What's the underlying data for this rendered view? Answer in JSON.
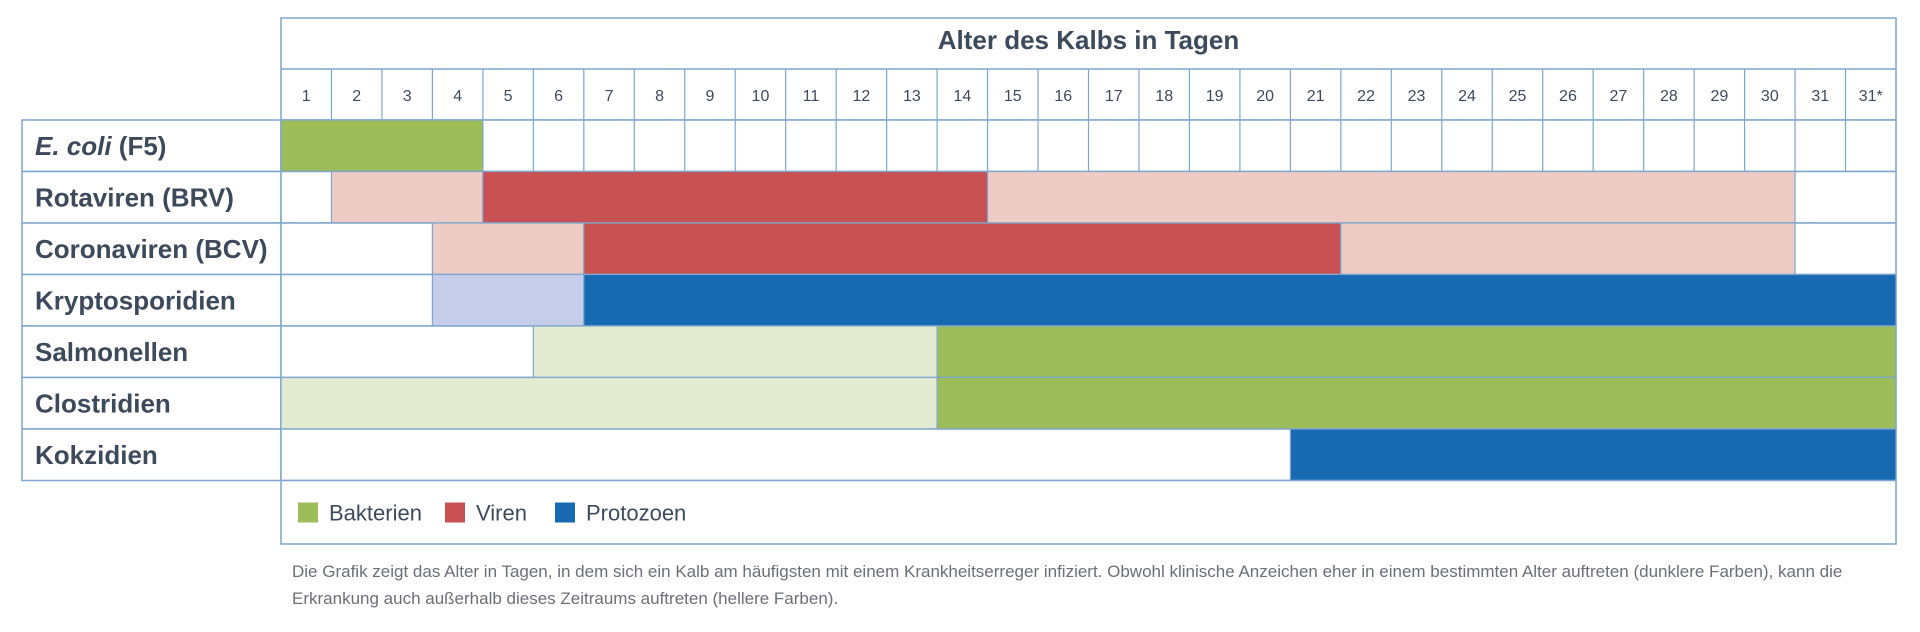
{
  "chart_data": {
    "type": "gantt",
    "title": "Alter des Kalbs in Tagen",
    "days": [
      "1",
      "2",
      "3",
      "4",
      "5",
      "6",
      "7",
      "8",
      "9",
      "10",
      "11",
      "12",
      "13",
      "14",
      "15",
      "16",
      "17",
      "18",
      "19",
      "20",
      "21",
      "22",
      "23",
      "24",
      "25",
      "26",
      "27",
      "28",
      "29",
      "30",
      "31",
      "31*"
    ],
    "rows": [
      {
        "label_italic": "E. coli",
        "label_rest": " (F5)",
        "segments": [
          {
            "start": 1,
            "end": 4,
            "category": "bacteria",
            "intensity": "dark"
          }
        ]
      },
      {
        "label": "Rotaviren (BRV)",
        "segments": [
          {
            "start": 2,
            "end": 4,
            "category": "viruses",
            "intensity": "light"
          },
          {
            "start": 5,
            "end": 14,
            "category": "viruses",
            "intensity": "dark"
          },
          {
            "start": 15,
            "end": 30,
            "category": "viruses",
            "intensity": "light"
          }
        ]
      },
      {
        "label": "Coronaviren (BCV)",
        "segments": [
          {
            "start": 4,
            "end": 6,
            "category": "viruses",
            "intensity": "light"
          },
          {
            "start": 7,
            "end": 21,
            "category": "viruses",
            "intensity": "dark"
          },
          {
            "start": 22,
            "end": 30,
            "category": "viruses",
            "intensity": "light"
          }
        ]
      },
      {
        "label": "Kryptosporidien",
        "segments": [
          {
            "start": 4,
            "end": 6,
            "category": "protozoa",
            "intensity": "light"
          },
          {
            "start": 7,
            "end": 32,
            "category": "protozoa",
            "intensity": "dark"
          }
        ]
      },
      {
        "label": "Salmonellen",
        "segments": [
          {
            "start": 6,
            "end": 13,
            "category": "bacteria",
            "intensity": "light"
          },
          {
            "start": 14,
            "end": 32,
            "category": "bacteria",
            "intensity": "dark"
          }
        ]
      },
      {
        "label": "Clostridien",
        "segments": [
          {
            "start": 1,
            "end": 13,
            "category": "bacteria",
            "intensity": "light"
          },
          {
            "start": 14,
            "end": 32,
            "category": "bacteria",
            "intensity": "dark"
          }
        ]
      },
      {
        "label": "Kokzidien",
        "segments": [
          {
            "start": 21,
            "end": 32,
            "category": "protozoa",
            "intensity": "dark"
          }
        ]
      }
    ],
    "legend": [
      {
        "key": "bacteria",
        "label": "Bakterien"
      },
      {
        "key": "viruses",
        "label": "Viren"
      },
      {
        "key": "protozoa",
        "label": "Protozoen"
      }
    ],
    "colors": {
      "bacteria": {
        "dark": "#9cbd5a",
        "light": "#e4ebd3"
      },
      "viruses": {
        "dark": "#c75153",
        "light": "#eecbc5"
      },
      "protozoa": {
        "dark": "#1769b2",
        "light": "#c5cdea"
      },
      "grid": "#7ea6cc",
      "text": "#3d4a5c"
    },
    "caption": "Die Grafik zeigt das Alter in Tagen, in dem sich ein Kalb am häufigsten mit einem Krankheitserreger infiziert. Obwohl klinische Anzeichen eher in einem bestimmten Alter auftreten (dunklere Farben), kann die Erkrankung auch außerhalb dieses Zeitraums auftreten (hellere Farben)."
  }
}
